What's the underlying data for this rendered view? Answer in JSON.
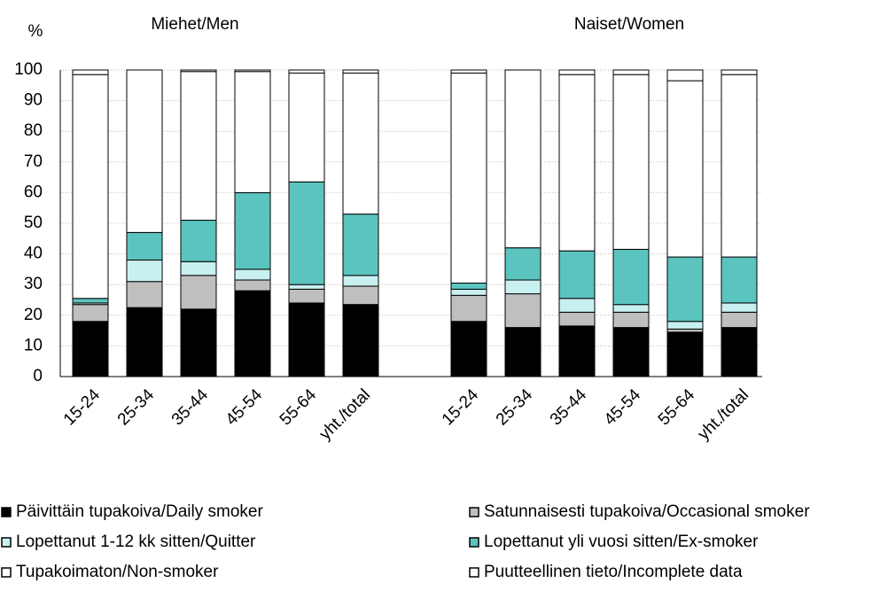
{
  "chart_data": {
    "type": "stacked_bar",
    "y_label": "%",
    "annotations": [
      "Miehet/Men",
      "Naiset/Women"
    ],
    "categories": [
      "15-24",
      "25-34",
      "35-44",
      "45-54",
      "55-64",
      "yht./total",
      null,
      "15-24",
      "25-34",
      "35-44",
      "45-54",
      "55-64",
      "yht./total"
    ],
    "series": [
      {
        "name": "Päivittäin tupakoiva/Daily smoker",
        "color": "#000000",
        "values": [
          18,
          22.5,
          22,
          28,
          24,
          23.5,
          null,
          18,
          16,
          16.5,
          16,
          14.5,
          16
        ]
      },
      {
        "name": "Satunnaisesti tupakoiva/Occasional smoker",
        "color": "#bfbfbf",
        "values": [
          5.5,
          8.5,
          11,
          3.5,
          4.5,
          6,
          null,
          8.5,
          11,
          4.5,
          5,
          1,
          5
        ]
      },
      {
        "name": "Lopettanut 1-12 kk sitten/Quitter",
        "color": "#c8f0f0",
        "values": [
          0.5,
          7,
          4.5,
          3.5,
          1.5,
          3.5,
          null,
          2,
          4.5,
          4.5,
          2.5,
          2.5,
          3
        ]
      },
      {
        "name": "Lopettanut yli vuosi sitten/Ex-smoker",
        "color": "#5bc4bf",
        "values": [
          1.5,
          9,
          13.5,
          25,
          33.5,
          20,
          null,
          2,
          10.5,
          15.5,
          18,
          21,
          15
        ]
      },
      {
        "name": "Tupakoimaton/Non-smoker",
        "color": "#ffffff",
        "values": [
          73,
          53,
          48.5,
          39.5,
          35.5,
          46,
          null,
          68.5,
          58,
          57.5,
          57,
          57.5,
          59.5
        ]
      },
      {
        "name": "Puutteellinen tieto/Incomplete data",
        "color": "#ffffff",
        "values": [
          1.5,
          0,
          0.5,
          0.5,
          1,
          1,
          null,
          1,
          0,
          1.5,
          1.5,
          3.5,
          1.5
        ]
      }
    ],
    "ylim": [
      0,
      100
    ],
    "yticks": [
      0,
      10,
      20,
      30,
      40,
      50,
      60,
      70,
      80,
      90,
      100
    ],
    "grid": true,
    "legend": "bottom"
  }
}
